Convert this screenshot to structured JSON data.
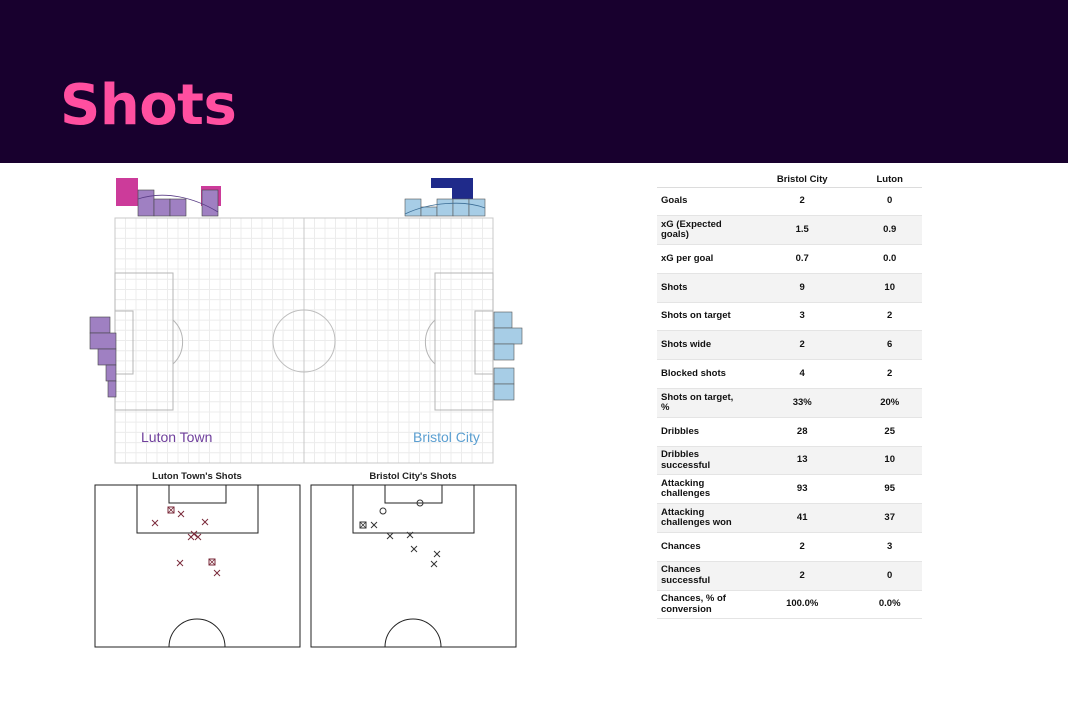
{
  "page": {
    "title": "Shots"
  },
  "heatmap": {
    "home_label": "Luton Town",
    "away_label": "Bristol City",
    "home_color": "#6f3f9c",
    "away_color": "#5b9fd1"
  },
  "shot_maps": [
    {
      "title": "Luton Town's Shots",
      "color": "#7a2a3a"
    },
    {
      "title": "Bristol City's Shots",
      "color": "#333333"
    }
  ],
  "stats": {
    "columns": [
      "Bristol City",
      "Luton"
    ],
    "rows": [
      {
        "metric": "Goals",
        "values": [
          "2",
          "0"
        ]
      },
      {
        "metric": "xG (Expected goals)",
        "values": [
          "1.5",
          "0.9"
        ]
      },
      {
        "metric": "xG per goal",
        "values": [
          "0.7",
          "0.0"
        ]
      },
      {
        "metric": "Shots",
        "values": [
          "9",
          "10"
        ]
      },
      {
        "metric": "Shots on target",
        "values": [
          "3",
          "2"
        ]
      },
      {
        "metric": "Shots wide",
        "values": [
          "2",
          "6"
        ]
      },
      {
        "metric": "Blocked shots",
        "values": [
          "4",
          "2"
        ]
      },
      {
        "metric": "Shots on target, %",
        "values": [
          "33%",
          "20%"
        ]
      },
      {
        "metric": "Dribbles",
        "values": [
          "28",
          "25"
        ]
      },
      {
        "metric": "Dribbles successful",
        "values": [
          "13",
          "10"
        ]
      },
      {
        "metric": "Attacking challenges",
        "values": [
          "93",
          "95"
        ]
      },
      {
        "metric": "Attacking challenges won",
        "values": [
          "41",
          "37"
        ]
      },
      {
        "metric": "Chances",
        "values": [
          "2",
          "3"
        ]
      },
      {
        "metric": "Chances successful",
        "values": [
          "2",
          "0"
        ]
      },
      {
        "metric": "Chances, % of conversion",
        "values": [
          "100.0%",
          "0.0%"
        ]
      }
    ]
  }
}
